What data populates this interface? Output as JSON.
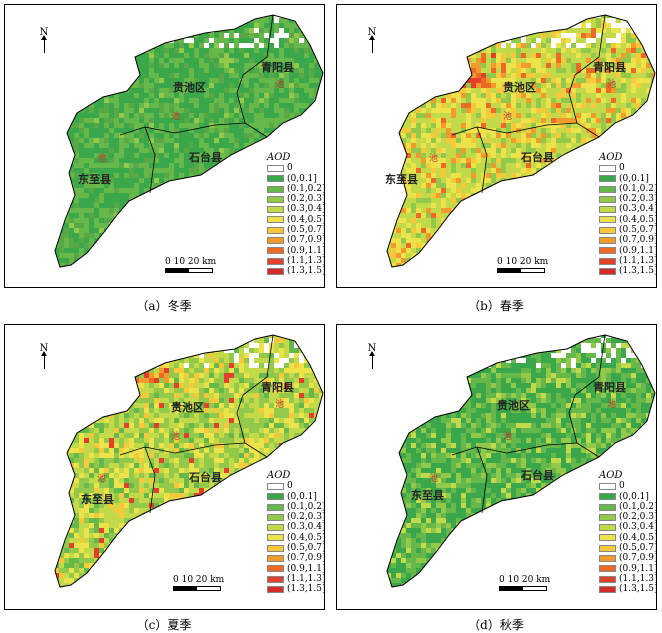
{
  "panels": [
    {
      "caption": "（a）冬季",
      "theme": "winter"
    },
    {
      "caption": "（b）春季",
      "theme": "spring"
    },
    {
      "caption": "（c）夏季",
      "theme": "summer"
    },
    {
      "caption": "（d）秋季",
      "theme": "autumn"
    }
  ],
  "north_label": "N",
  "regions": {
    "qingyang": "青阳县",
    "guichi": "贵池区",
    "shitai": "石台县",
    "dongzhi": "东至县",
    "chi": "池"
  },
  "legend": {
    "title": "AOD",
    "items": [
      {
        "label": "0",
        "color": "#ffffff"
      },
      {
        "label": "(0,0.1]",
        "color": "#3aa84a"
      },
      {
        "label": "(0.1,0.2]",
        "color": "#66b84a"
      },
      {
        "label": "(0.2,0.3]",
        "color": "#93c94a"
      },
      {
        "label": "(0.3,0.4]",
        "color": "#c2d94a"
      },
      {
        "label": "(0.4,0.5]",
        "color": "#ece24a"
      },
      {
        "label": "(0.5,0.7]",
        "color": "#f7c93a"
      },
      {
        "label": "(0.7,0.9]",
        "color": "#f39a2c"
      },
      {
        "label": "(0.9,1.1]",
        "color": "#ec6a26"
      },
      {
        "label": "(1.1,1.3]",
        "color": "#e2402a"
      },
      {
        "label": "(1.3,1.5]",
        "color": "#d42a2a"
      }
    ]
  },
  "scale": {
    "label": "0  10 20 km"
  }
}
